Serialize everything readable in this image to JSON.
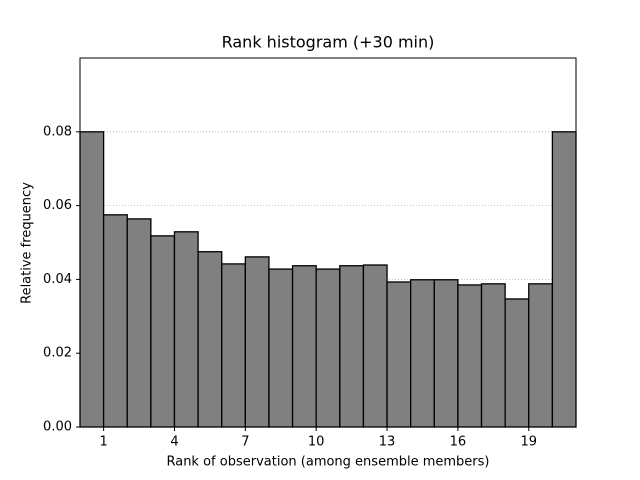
{
  "chart_data": {
    "type": "histogram",
    "title": "Rank histogram (+30 min)",
    "xlabel": "Rank of observation (among ensemble members)",
    "ylabel": "Relative frequency",
    "bins": [
      0,
      1,
      2,
      3,
      4,
      5,
      6,
      7,
      8,
      9,
      10,
      11,
      12,
      13,
      14,
      15,
      16,
      17,
      18,
      19,
      20,
      21
    ],
    "values": [
      0.08,
      0.0575,
      0.0564,
      0.0518,
      0.0529,
      0.0475,
      0.0442,
      0.0461,
      0.0428,
      0.0437,
      0.0428,
      0.0437,
      0.0439,
      0.0393,
      0.0399,
      0.0399,
      0.0385,
      0.0388,
      0.0347,
      0.0388,
      0.08
    ],
    "color": "#808080",
    "edgecolor": "#000000",
    "xlim": [
      0,
      21
    ],
    "xticks": [
      1,
      4,
      7,
      10,
      13,
      16,
      19
    ],
    "ylim": [
      0,
      0.1
    ],
    "yticks": [
      {
        "value": 0,
        "label": "0.00"
      },
      {
        "value": 0.02,
        "label": "0.02"
      },
      {
        "value": 0.04,
        "label": "0.04"
      },
      {
        "value": 0.06,
        "label": "0.06"
      },
      {
        "value": 0.08,
        "label": "0.08"
      }
    ],
    "grid": true
  }
}
